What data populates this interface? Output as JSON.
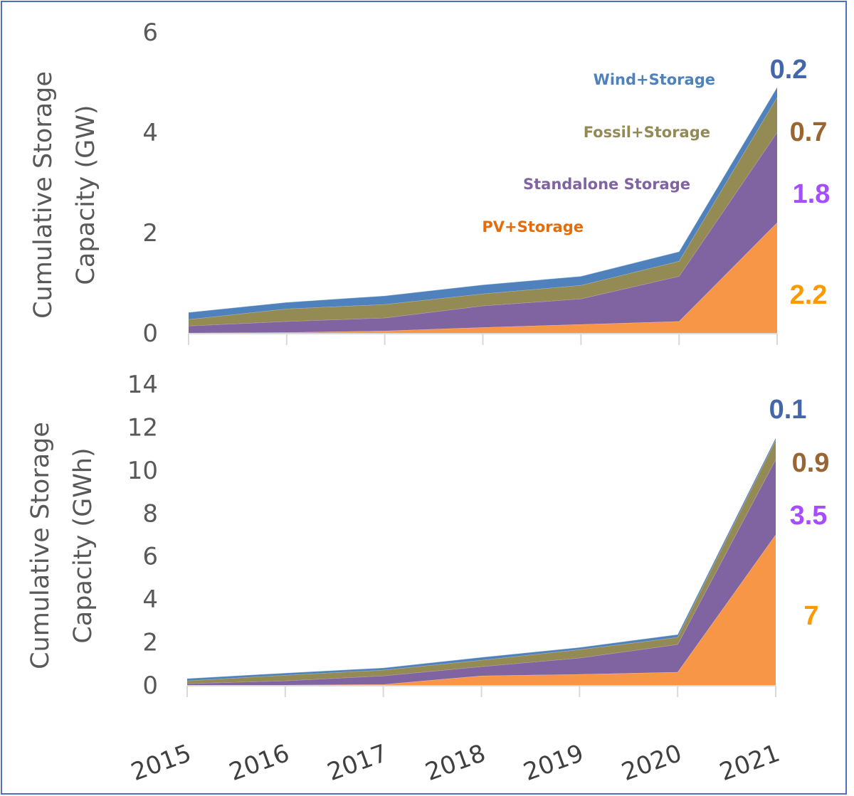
{
  "chart_data": [
    {
      "type": "area",
      "stacked": true,
      "title": "",
      "xlabel": "",
      "ylabel": "Cumulative Storage Capacity (GW)",
      "ylabel_lines": [
        "Cumulative Storage",
        "Capacity (GW)"
      ],
      "ylim": [
        0,
        6
      ],
      "yticks": [
        "0",
        "2",
        "4",
        "6"
      ],
      "grid": false,
      "categories": [
        "2015",
        "2016",
        "2017",
        "2018",
        "2019",
        "2020",
        "2021"
      ],
      "series": [
        {
          "name": "PV+Storage",
          "color": "#f79646",
          "label_color": "#e46c0a",
          "values": [
            0.0,
            0.01,
            0.04,
            0.11,
            0.17,
            0.23,
            2.2
          ]
        },
        {
          "name": "Standalone Storage",
          "color": "#8064a2",
          "label_color": "#8064a2",
          "values": [
            0.14,
            0.22,
            0.26,
            0.43,
            0.51,
            0.9,
            1.8
          ]
        },
        {
          "name": "Fossil+Storage",
          "color": "#948a54",
          "label_color": "#948a54",
          "values": [
            0.13,
            0.25,
            0.27,
            0.24,
            0.27,
            0.3,
            0.7
          ]
        },
        {
          "name": "Wind+Storage",
          "color": "#4f81bd",
          "label_color": "#4f81bd",
          "values": [
            0.14,
            0.13,
            0.17,
            0.18,
            0.18,
            0.19,
            0.2
          ]
        }
      ],
      "end_labels": [
        {
          "series": "PV+Storage",
          "text": "2.2",
          "color": "#ff9900"
        },
        {
          "series": "Standalone Storage",
          "text": "1.8",
          "color": "#a64dff"
        },
        {
          "series": "Fossil+Storage",
          "text": "0.7",
          "color": "#996633"
        },
        {
          "series": "Wind+Storage",
          "text": "0.2",
          "color": "#4466aa"
        }
      ],
      "series_labels_shown": true
    },
    {
      "type": "area",
      "stacked": true,
      "title": "",
      "xlabel": "",
      "ylabel": "Cumulative Storage Capacity (GWh)",
      "ylabel_lines": [
        "Cumulative Storage",
        "Capacity (GWh)"
      ],
      "ylim": [
        0,
        14
      ],
      "yticks": [
        "0",
        "2",
        "4",
        "6",
        "8",
        "10",
        "12",
        "14"
      ],
      "grid": false,
      "categories": [
        "2015",
        "2016",
        "2017",
        "2018",
        "2019",
        "2020",
        "2021"
      ],
      "series": [
        {
          "name": "PV+Storage",
          "color": "#f79646",
          "values": [
            0.0,
            0.0,
            0.03,
            0.43,
            0.5,
            0.6,
            7.0
          ]
        },
        {
          "name": "Standalone Storage",
          "color": "#8064a2",
          "values": [
            0.07,
            0.2,
            0.4,
            0.43,
            0.76,
            1.29,
            3.5
          ]
        },
        {
          "name": "Fossil+Storage",
          "color": "#948a54",
          "values": [
            0.13,
            0.26,
            0.27,
            0.3,
            0.39,
            0.33,
            0.9
          ]
        },
        {
          "name": "Wind+Storage",
          "color": "#4f81bd",
          "values": [
            0.1,
            0.1,
            0.1,
            0.13,
            0.1,
            0.13,
            0.1
          ]
        }
      ],
      "end_labels": [
        {
          "series": "PV+Storage",
          "text": "7",
          "color": "#ff9900"
        },
        {
          "series": "Standalone Storage",
          "text": "3.5",
          "color": "#a64dff"
        },
        {
          "series": "Fossil+Storage",
          "text": "0.9",
          "color": "#996633"
        },
        {
          "series": "Wind+Storage",
          "text": "0.1",
          "color": "#4466aa"
        }
      ],
      "series_labels_shown": false
    }
  ]
}
